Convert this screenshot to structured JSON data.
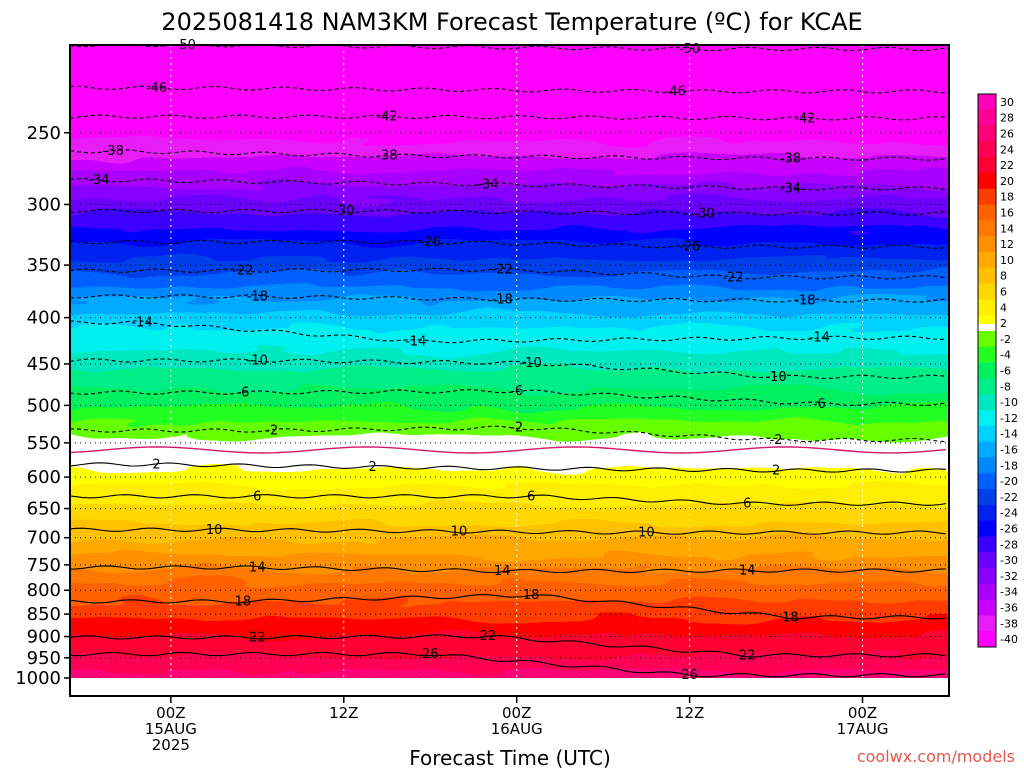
{
  "chart_data": {
    "type": "heatmap",
    "title": "2025081418 NAM3KM Forecast Temperature (ºC) for KCAE",
    "xlabel": "Forecast Time (UTC)",
    "ylabel": "",
    "credit": "coolwx.com/models",
    "x_axis": {
      "ticks": [
        {
          "hour": 6,
          "lines": [
            "00Z",
            "15AUG",
            "2025"
          ]
        },
        {
          "hour": 18,
          "lines": [
            "12Z"
          ]
        },
        {
          "hour": 30,
          "lines": [
            "00Z",
            "16AUG"
          ]
        },
        {
          "hour": 42,
          "lines": [
            "12Z"
          ]
        },
        {
          "hour": 54,
          "lines": [
            "00Z",
            "17AUG"
          ]
        }
      ],
      "xlim_hours": [
        -1,
        60
      ]
    },
    "y_axis": {
      "scale": "log",
      "unit": "hPa",
      "ylim": [
        1000,
        200
      ],
      "ticks": [
        250,
        300,
        350,
        400,
        450,
        500,
        550,
        600,
        650,
        700,
        750,
        800,
        850,
        900,
        950,
        1000
      ]
    },
    "grid": true,
    "colorbar": {
      "placement": "right",
      "ticks_celsius": [
        30,
        28,
        26,
        24,
        22,
        20,
        18,
        16,
        14,
        12,
        10,
        8,
        6,
        4,
        2,
        -2,
        -4,
        -6,
        -8,
        -10,
        -12,
        -14,
        -16,
        -18,
        -20,
        -22,
        -24,
        -26,
        -28,
        -30,
        -32,
        -34,
        -36,
        -38,
        -40
      ]
    },
    "colors": {
      "c_-40": "#ff00ff",
      "c_-38": "#e81cf7",
      "c_-36": "#c800ff",
      "c_-34": "#a800ff",
      "c_-32": "#8800ff",
      "c_-30": "#6a00ff",
      "c_-28": "#3a00ff",
      "c_-26": "#0000ff",
      "c_-24": "#0022f0",
      "c_-22": "#0040e8",
      "c_-20": "#0060ff",
      "c_-18": "#0088ff",
      "c_-16": "#00aaff",
      "c_-14": "#00d2ff",
      "c_-12": "#00f0f0",
      "c_-10": "#00e8c0",
      "c_-8": "#00ee88",
      "c_-6": "#00f060",
      "c_-4": "#22ff22",
      "c_-2": "#66ff00",
      "c_0": "#ffffff",
      "c_2": "#ffff00",
      "c_4": "#ffee00",
      "c_6": "#ffd700",
      "c_8": "#ffc000",
      "c_10": "#ffa800",
      "c_12": "#ff9000",
      "c_14": "#ff7800",
      "c_16": "#ff6000",
      "c_18": "#ff3c00",
      "c_20": "#ff0000",
      "c_22": "#ff0033",
      "c_24": "#ff0055",
      "c_26": "#ff0077",
      "c_28": "#ff0099",
      "c_30": "#ff00bb",
      "ground": "#a0522d",
      "freezing_line": "#d4166a"
    },
    "profile_00": [
      {
        "p": 200,
        "t": -51
      },
      {
        "p": 225,
        "t": -47
      },
      {
        "p": 250,
        "t": -41
      },
      {
        "p": 275,
        "t": -36
      },
      {
        "p": 300,
        "t": -31
      },
      {
        "p": 330,
        "t": -26
      },
      {
        "p": 350,
        "t": -23
      },
      {
        "p": 375,
        "t": -19
      },
      {
        "p": 400,
        "t": -15
      },
      {
        "p": 450,
        "t": -10.5
      },
      {
        "p": 500,
        "t": -6
      },
      {
        "p": 530,
        "t": -3
      },
      {
        "p": 560,
        "t": 0
      },
      {
        "p": 600,
        "t": 3.2
      },
      {
        "p": 650,
        "t": 6.5
      },
      {
        "p": 700,
        "t": 10
      },
      {
        "p": 750,
        "t": 13.6
      },
      {
        "p": 800,
        "t": 17
      },
      {
        "p": 850,
        "t": 19.5
      },
      {
        "p": 900,
        "t": 22.2
      },
      {
        "p": 950,
        "t": 24.5
      },
      {
        "p": 1000,
        "t": 27
      }
    ],
    "contour_labels": [
      {
        "v": "-50",
        "h": 7,
        "p": 200
      },
      {
        "v": "-50",
        "h": 42,
        "p": 202
      },
      {
        "v": "-46",
        "h": 5,
        "p": 223
      },
      {
        "v": "-46",
        "h": 41,
        "p": 225
      },
      {
        "v": "-42",
        "h": 21,
        "p": 240
      },
      {
        "v": "-42",
        "h": 50,
        "p": 241
      },
      {
        "v": "-38",
        "h": 2,
        "p": 262
      },
      {
        "v": "-38",
        "h": 21,
        "p": 265
      },
      {
        "v": "-38",
        "h": 49,
        "p": 267
      },
      {
        "v": "-34",
        "h": 1,
        "p": 282
      },
      {
        "v": "-34",
        "h": 28,
        "p": 285
      },
      {
        "v": "-34",
        "h": 49,
        "p": 288
      },
      {
        "v": "-30",
        "h": 18,
        "p": 305
      },
      {
        "v": "-30",
        "h": 43,
        "p": 307
      },
      {
        "v": "-26",
        "h": 24,
        "p": 330
      },
      {
        "v": "-26",
        "h": 42,
        "p": 334
      },
      {
        "v": "-22",
        "h": 11,
        "p": 355
      },
      {
        "v": "-22",
        "h": 29,
        "p": 354
      },
      {
        "v": "-22",
        "h": 45,
        "p": 361
      },
      {
        "v": "-18",
        "h": 12,
        "p": 379
      },
      {
        "v": "-18",
        "h": 29,
        "p": 382
      },
      {
        "v": "-18",
        "h": 50,
        "p": 383
      },
      {
        "v": "-14",
        "h": 4,
        "p": 405
      },
      {
        "v": "-14",
        "h": 23,
        "p": 425
      },
      {
        "v": "-14",
        "h": 51,
        "p": 421
      },
      {
        "v": "-10",
        "h": 12,
        "p": 446
      },
      {
        "v": "-10",
        "h": 31,
        "p": 449
      },
      {
        "v": "-10",
        "h": 48,
        "p": 465
      },
      {
        "v": "-6",
        "h": 11,
        "p": 484
      },
      {
        "v": "-6",
        "h": 30,
        "p": 482
      },
      {
        "v": "-6",
        "h": 51,
        "p": 498
      },
      {
        "v": "-2",
        "h": 13,
        "p": 533
      },
      {
        "v": "-2",
        "h": 30,
        "p": 529
      },
      {
        "v": "-2",
        "h": 48,
        "p": 546
      },
      {
        "v": "2",
        "h": 5,
        "p": 581
      },
      {
        "v": "2",
        "h": 20,
        "p": 585
      },
      {
        "v": "2",
        "h": 48,
        "p": 590
      },
      {
        "v": "6",
        "h": 12,
        "p": 630
      },
      {
        "v": "6",
        "h": 31,
        "p": 630
      },
      {
        "v": "6",
        "h": 46,
        "p": 642
      },
      {
        "v": "10",
        "h": 9,
        "p": 686
      },
      {
        "v": "10",
        "h": 26,
        "p": 689
      },
      {
        "v": "10",
        "h": 39,
        "p": 691
      },
      {
        "v": "14",
        "h": 12,
        "p": 755
      },
      {
        "v": "14",
        "h": 29,
        "p": 762
      },
      {
        "v": "14",
        "h": 46,
        "p": 761
      },
      {
        "v": "18",
        "h": 11,
        "p": 823
      },
      {
        "v": "18",
        "h": 31,
        "p": 810
      },
      {
        "v": "18",
        "h": 49,
        "p": 857
      },
      {
        "v": "22",
        "h": 12,
        "p": 902
      },
      {
        "v": "22",
        "h": 28,
        "p": 899
      },
      {
        "v": "22",
        "h": 46,
        "p": 944
      },
      {
        "v": "26",
        "h": 24,
        "p": 941
      },
      {
        "v": "26",
        "h": 42,
        "p": 993
      }
    ]
  }
}
